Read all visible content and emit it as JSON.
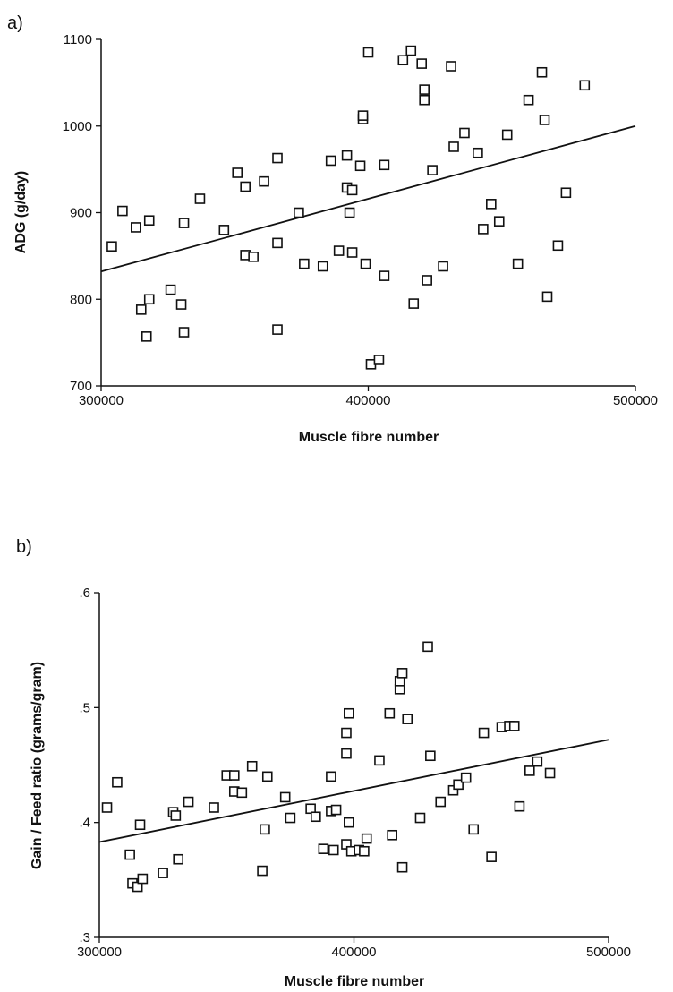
{
  "chart_data": [
    {
      "type": "scatter",
      "panel_label": "a)",
      "xlabel": "Muscle fibre number",
      "ylabel": "ADG  (g/day)",
      "xlim": [
        300000,
        500000
      ],
      "ylim": [
        700,
        1100
      ],
      "xticks": [
        300000,
        400000,
        500000
      ],
      "xtick_labels": [
        "300000",
        "400000",
        "500000"
      ],
      "yticks": [
        700,
        800,
        900,
        1000,
        1100
      ],
      "ytick_labels": [
        "700",
        "800",
        "900",
        "1000",
        "1100"
      ],
      "fit_line": [
        [
          300000,
          832
        ],
        [
          500000,
          1000
        ]
      ],
      "points": [
        [
          304000,
          861
        ],
        [
          308000,
          902
        ],
        [
          313000,
          883
        ],
        [
          315000,
          788
        ],
        [
          317000,
          757
        ],
        [
          318000,
          891
        ],
        [
          318000,
          800
        ],
        [
          326000,
          811
        ],
        [
          330000,
          794
        ],
        [
          331000,
          888
        ],
        [
          331000,
          762
        ],
        [
          337000,
          916
        ],
        [
          346000,
          880
        ],
        [
          351000,
          946
        ],
        [
          354000,
          930
        ],
        [
          354000,
          851
        ],
        [
          357000,
          849
        ],
        [
          361000,
          936
        ],
        [
          366000,
          963
        ],
        [
          366000,
          865
        ],
        [
          366000,
          765
        ],
        [
          374000,
          900
        ],
        [
          376000,
          841
        ],
        [
          383000,
          838
        ],
        [
          386000,
          960
        ],
        [
          389000,
          856
        ],
        [
          392000,
          966
        ],
        [
          392000,
          929
        ],
        [
          393000,
          900
        ],
        [
          394000,
          926
        ],
        [
          394000,
          854
        ],
        [
          397000,
          954
        ],
        [
          398000,
          1008
        ],
        [
          398000,
          1012
        ],
        [
          400000,
          1085
        ],
        [
          399000,
          841
        ],
        [
          401000,
          725
        ],
        [
          404000,
          730
        ],
        [
          406000,
          955
        ],
        [
          406000,
          827
        ],
        [
          413000,
          1076
        ],
        [
          416000,
          1087
        ],
        [
          417000,
          795
        ],
        [
          420000,
          1072
        ],
        [
          421000,
          1042
        ],
        [
          421000,
          1030
        ],
        [
          422000,
          822
        ],
        [
          424000,
          949
        ],
        [
          428000,
          838
        ],
        [
          431000,
          1069
        ],
        [
          432000,
          976
        ],
        [
          436000,
          992
        ],
        [
          441000,
          969
        ],
        [
          443000,
          881
        ],
        [
          446000,
          910
        ],
        [
          449000,
          890
        ],
        [
          452000,
          990
        ],
        [
          456000,
          841
        ],
        [
          460000,
          1030
        ],
        [
          465000,
          1062
        ],
        [
          466000,
          1007
        ],
        [
          467000,
          803
        ],
        [
          471000,
          862
        ],
        [
          474000,
          923
        ],
        [
          481000,
          1047
        ]
      ]
    },
    {
      "type": "scatter",
      "panel_label": "b)",
      "xlabel": "Muscle fibre number",
      "ylabel": "Gain / Feed ratio (grams/gram)",
      "xlim": [
        300000,
        500000
      ],
      "ylim": [
        0.3,
        0.6
      ],
      "xticks": [
        300000,
        400000,
        500000
      ],
      "xtick_labels": [
        "300000",
        "400000",
        "500000"
      ],
      "yticks": [
        0.3,
        0.4,
        0.5,
        0.6
      ],
      "ytick_labels": [
        ".3",
        ".4",
        ".5",
        ".6"
      ],
      "fit_line": [
        [
          300000,
          0.383
        ],
        [
          500000,
          0.472
        ]
      ],
      "points": [
        [
          303000,
          0.413
        ],
        [
          307000,
          0.435
        ],
        [
          312000,
          0.372
        ],
        [
          313000,
          0.347
        ],
        [
          315000,
          0.344
        ],
        [
          316000,
          0.398
        ],
        [
          317000,
          0.351
        ],
        [
          325000,
          0.356
        ],
        [
          329000,
          0.409
        ],
        [
          330000,
          0.406
        ],
        [
          331000,
          0.368
        ],
        [
          335000,
          0.418
        ],
        [
          345000,
          0.413
        ],
        [
          350000,
          0.441
        ],
        [
          353000,
          0.441
        ],
        [
          353000,
          0.427
        ],
        [
          356000,
          0.426
        ],
        [
          360000,
          0.449
        ],
        [
          364000,
          0.358
        ],
        [
          365000,
          0.394
        ],
        [
          366000,
          0.44
        ],
        [
          373000,
          0.422
        ],
        [
          375000,
          0.404
        ],
        [
          383000,
          0.412
        ],
        [
          385000,
          0.405
        ],
        [
          388000,
          0.377
        ],
        [
          391000,
          0.44
        ],
        [
          391000,
          0.41
        ],
        [
          392000,
          0.376
        ],
        [
          393000,
          0.411
        ],
        [
          397000,
          0.46
        ],
        [
          397000,
          0.478
        ],
        [
          398000,
          0.495
        ],
        [
          397000,
          0.381
        ],
        [
          398000,
          0.4
        ],
        [
          399000,
          0.375
        ],
        [
          402000,
          0.376
        ],
        [
          404000,
          0.375
        ],
        [
          405000,
          0.386
        ],
        [
          410000,
          0.454
        ],
        [
          414000,
          0.495
        ],
        [
          415000,
          0.389
        ],
        [
          418000,
          0.516
        ],
        [
          418000,
          0.523
        ],
        [
          419000,
          0.53
        ],
        [
          419000,
          0.361
        ],
        [
          421000,
          0.49
        ],
        [
          426000,
          0.404
        ],
        [
          429000,
          0.553
        ],
        [
          430000,
          0.458
        ],
        [
          434000,
          0.418
        ],
        [
          439000,
          0.428
        ],
        [
          441000,
          0.433
        ],
        [
          444000,
          0.439
        ],
        [
          447000,
          0.394
        ],
        [
          451000,
          0.478
        ],
        [
          454000,
          0.37
        ],
        [
          458000,
          0.483
        ],
        [
          461000,
          0.484
        ],
        [
          463000,
          0.484
        ],
        [
          465000,
          0.414
        ],
        [
          469000,
          0.445
        ],
        [
          472000,
          0.453
        ],
        [
          477000,
          0.443
        ]
      ]
    }
  ]
}
